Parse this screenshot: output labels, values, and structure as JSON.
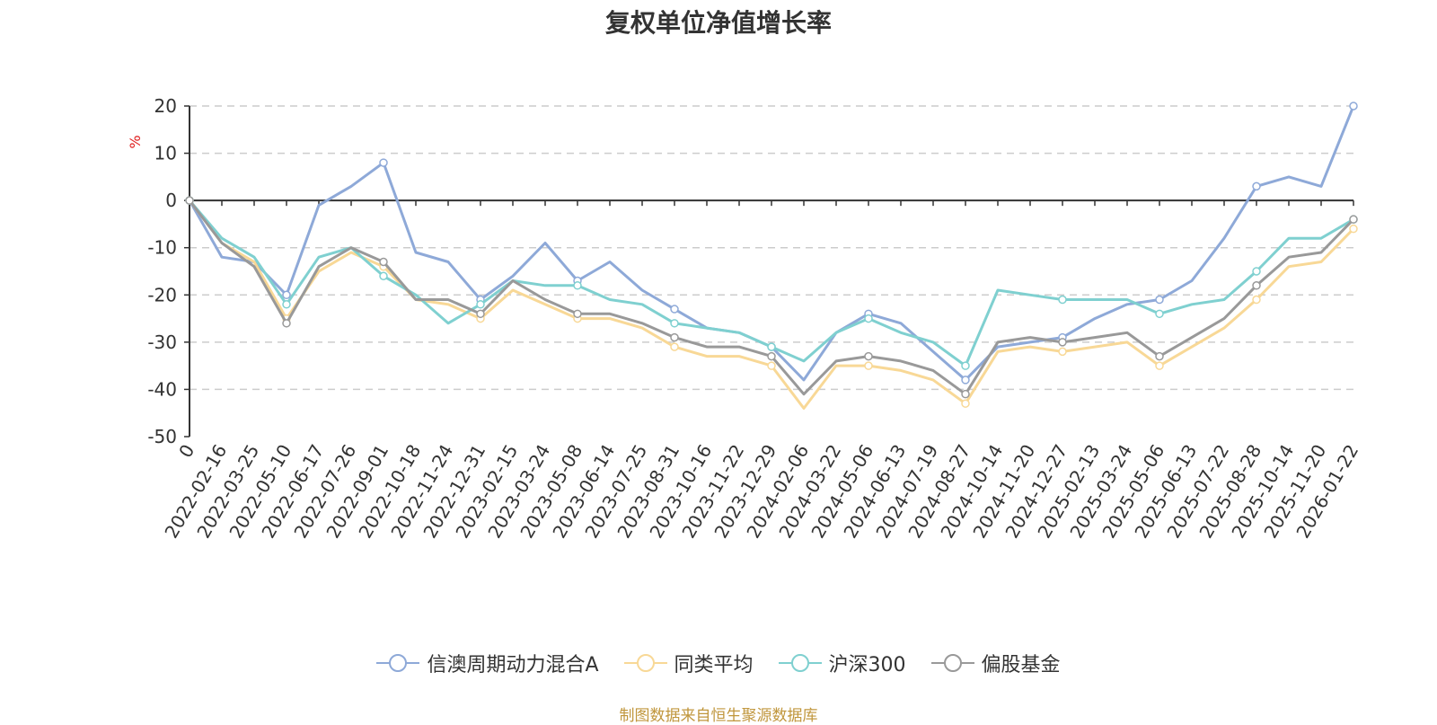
{
  "chart_data": {
    "type": "line",
    "title": "复权单位净值增长率",
    "ylabel": "%",
    "ylim": [
      -50,
      20
    ],
    "yticks": [
      20,
      10,
      0,
      -10,
      -20,
      -30,
      -40,
      -50
    ],
    "grid": true,
    "legend_position": "bottom",
    "x_ticks": [
      "0",
      "2022-02-16",
      "2022-03-25",
      "2022-05-10",
      "2022-06-17",
      "2022-07-26",
      "2022-09-01",
      "2022-10-18",
      "2022-11-24",
      "2022-12-31",
      "2023-02-15",
      "2023-03-24",
      "2023-05-08",
      "2023-06-14",
      "2023-07-25",
      "2023-08-31",
      "2023-10-16",
      "2023-11-22",
      "2023-12-29",
      "2024-02-06",
      "2024-03-22",
      "2024-05-06",
      "2024-06-13",
      "2024-07-19",
      "2024-08-27",
      "2024-10-14",
      "2024-11-20",
      "2024-12-27",
      "2025-02-13",
      "2025-03-24",
      "2025-05-06",
      "2025-06-13",
      "2025-07-22",
      "2025-08-28",
      "2025-10-14",
      "2025-11-20",
      "2026-01-22"
    ],
    "series": [
      {
        "name": "信澳周期动力混合A",
        "color": "#8ea9d8",
        "values": [
          0,
          -12,
          -13,
          -20,
          -1,
          3,
          8,
          -11,
          -13,
          -21,
          -16,
          -9,
          -17,
          -13,
          -19,
          -23,
          -27,
          -28,
          -31,
          -38,
          -28,
          -24,
          -26,
          -32,
          -38,
          -31,
          -30,
          -29,
          -25,
          -22,
          -21,
          -17,
          -8,
          3,
          5,
          3,
          20
        ]
      },
      {
        "name": "同类平均",
        "color": "#f8d896",
        "values": [
          0,
          -9,
          -13,
          -25,
          -15,
          -11,
          -14,
          -21,
          -22,
          -25,
          -19,
          -22,
          -25,
          -25,
          -27,
          -31,
          -33,
          -33,
          -35,
          -44,
          -35,
          -35,
          -36,
          -38,
          -43,
          -32,
          -31,
          -32,
          -31,
          -30,
          -35,
          -31,
          -27,
          -21,
          -14,
          -13,
          -6
        ]
      },
      {
        "name": "沪深300",
        "color": "#7fd0d0",
        "values": [
          0,
          -8,
          -12,
          -22,
          -12,
          -10,
          -16,
          -20,
          -26,
          -22,
          -17,
          -18,
          -18,
          -21,
          -22,
          -26,
          -27,
          -28,
          -31,
          -34,
          -28,
          -25,
          -28,
          -30,
          -35,
          -19,
          -20,
          -21,
          -21,
          -21,
          -24,
          -22,
          -21,
          -15,
          -8,
          -8,
          -4
        ]
      },
      {
        "name": "偏股基金",
        "color": "#999999",
        "values": [
          0,
          -9,
          -14,
          -26,
          -14,
          -10,
          -13,
          -21,
          -21,
          -24,
          -17,
          -21,
          -24,
          -24,
          -26,
          -29,
          -31,
          -31,
          -33,
          -41,
          -34,
          -33,
          -34,
          -36,
          -41,
          -30,
          -29,
          -30,
          -29,
          -28,
          -33,
          -29,
          -25,
          -18,
          -12,
          -11,
          -4
        ]
      }
    ]
  },
  "source_text": "制图数据来自恒生聚源数据库"
}
